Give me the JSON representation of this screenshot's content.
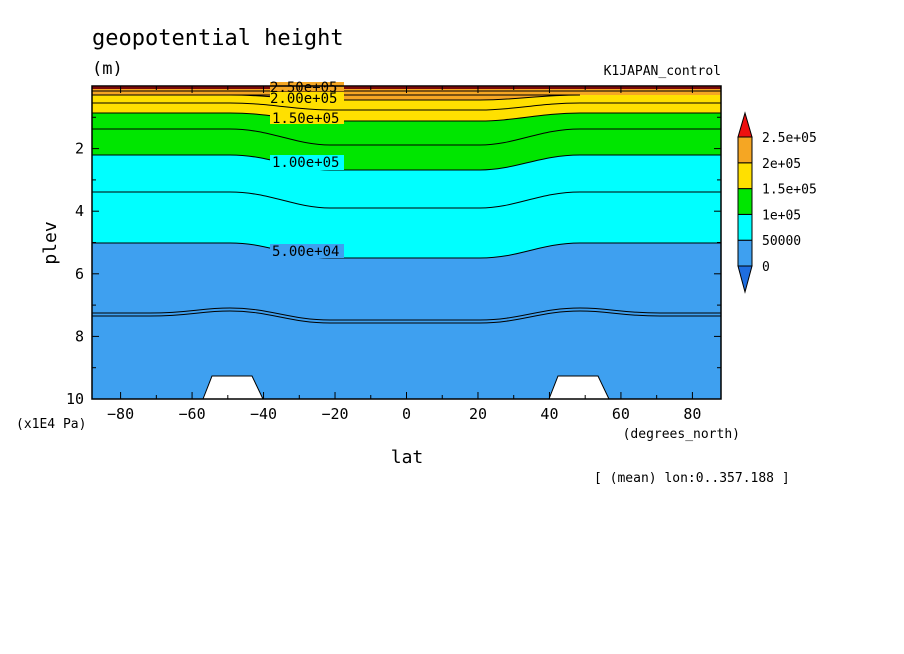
{
  "chart_data": {
    "type": "contour",
    "title": "geopotential height",
    "units": "(m)",
    "experiment": "K1JAPAN_control",
    "xlabel": "lat",
    "xunits": "(degrees_north)",
    "ylabel": "plev",
    "yunits": "(x1E4 Pa)",
    "xlim": [
      -88,
      88
    ],
    "ylim": [
      10,
      0
    ],
    "xticks": [
      -80,
      -60,
      -40,
      -20,
      0,
      20,
      40,
      60,
      80
    ],
    "yticks": [
      2,
      4,
      6,
      8,
      10
    ],
    "footer": "[ (mean) lon:0..357.188 ]",
    "colorbar": {
      "levels": [
        0,
        50000,
        100000,
        150000,
        200000,
        250000
      ],
      "tick_labels": [
        "0",
        "50000",
        "1e+05",
        "1.5e+05",
        "2e+05",
        "2.5e+05"
      ],
      "colors": [
        "#1e90ff",
        "#00ffff",
        "#00ee00",
        "#ffd700",
        "#ffa500",
        "#ff0000"
      ],
      "band_colors": [
        "#3ea0f0",
        "#00ffff",
        "#00e600",
        "#ffe000",
        "#f5a623"
      ],
      "under_color": "#1e6ee0",
      "over_color": "#ee1010"
    },
    "contour_labels": [
      {
        "text": "2.50e+05",
        "value": 250000
      },
      {
        "text": "2.00e+05",
        "value": 200000
      },
      {
        "text": "1.50e+05",
        "value": 150000
      },
      {
        "text": "1.00e+05",
        "value": 100000
      },
      {
        "text": "5.00e+04",
        "value": 50000
      }
    ]
  }
}
